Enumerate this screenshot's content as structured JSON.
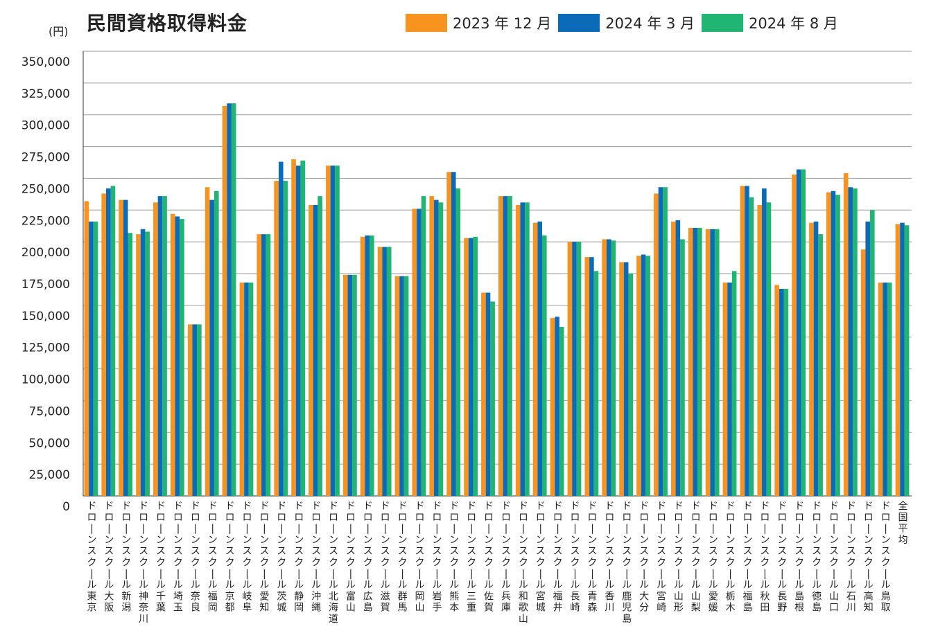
{
  "chart_data": {
    "type": "bar",
    "title": "民間資格取得料金",
    "ylabel": "(円)",
    "xlabel": "",
    "ylim": [
      0,
      350000
    ],
    "yticks": [
      "0",
      "25,000",
      "50,000",
      "75,000",
      "100,000",
      "125,000",
      "150,000",
      "175,000",
      "200,000",
      "225,000",
      "250,000",
      "275,000",
      "300,000",
      "325,000",
      "350,000"
    ],
    "grid": true,
    "legend_position": "top",
    "colors": [
      "#f7931e",
      "#0b6bb8",
      "#21b573"
    ],
    "categories": [
      "ドローンスクール東京",
      "ドローンスクール大阪",
      "ドローンスクール新潟",
      "ドローンスクール神奈川",
      "ドローンスクール千葉",
      "ドローンスクール埼玉",
      "ドローンスクール奈良",
      "ドローンスクール福岡",
      "ドローンスクール京都",
      "ドローンスクール岐阜",
      "ドローンスクール愛知",
      "ドローンスクール茨城",
      "ドローンスクール静岡",
      "ドローンスクール沖縄",
      "ドローンスクール北海道",
      "ドローンスクール富山",
      "ドローンスクール広島",
      "ドローンスクール滋賀",
      "ドローンスクール群馬",
      "ドローンスクール岡山",
      "ドローンスクール岩手",
      "ドローンスクール熊本",
      "ドローンスクール三重",
      "ドローンスクール佐賀",
      "ドローンスクール兵庫",
      "ドローンスクール和歌山",
      "ドローンスクール宮城",
      "ドローンスクール福井",
      "ドローンスクール長崎",
      "ドローンスクール青森",
      "ドローンスクール香川",
      "ドローンスクール鹿児島",
      "ドローンスクール大分",
      "ドローンスクール宮崎",
      "ドローンスクール山形",
      "ドローンスクール山梨",
      "ドローンスクール愛媛",
      "ドローンスクール栃木",
      "ドローンスクール福島",
      "ドローンスクール秋田",
      "ドローンスクール長野",
      "ドローンスクール島根",
      "ドローンスクール徳島",
      "ドローンスクール山口",
      "ドローンスクール石川",
      "ドローンスクール高知",
      "ドローンスクール鳥取",
      "全国平均"
    ],
    "series": [
      {
        "name": "2023 年 12 月",
        "values": [
          232000,
          238000,
          233000,
          206000,
          231000,
          222000,
          135000,
          243000,
          307000,
          168000,
          206000,
          248000,
          265000,
          229000,
          260000,
          174000,
          204000,
          196000,
          173000,
          226000,
          236000,
          255000,
          203000,
          160000,
          236000,
          229000,
          215000,
          140000,
          200000,
          188000,
          202000,
          184000,
          189000,
          238000,
          216000,
          211000,
          210000,
          168000,
          244000,
          229000,
          166000,
          253000,
          215000,
          239000,
          254000,
          194000,
          168000,
          214000
        ]
      },
      {
        "name": "2024 年 3 月",
        "values": [
          216000,
          242000,
          233000,
          210000,
          236000,
          220000,
          135000,
          233000,
          309000,
          168000,
          206000,
          263000,
          260000,
          229000,
          260000,
          174000,
          205000,
          196000,
          173000,
          226000,
          233000,
          255000,
          203000,
          160000,
          236000,
          231000,
          216000,
          141000,
          200000,
          188000,
          202000,
          184000,
          190000,
          243000,
          217000,
          211000,
          210000,
          168000,
          244000,
          242000,
          163000,
          257000,
          216000,
          240000,
          243000,
          216000,
          168000,
          215000
        ]
      },
      {
        "name": "2024 年 8 月",
        "values": [
          216000,
          244000,
          207000,
          208000,
          236000,
          218000,
          135000,
          240000,
          309000,
          168000,
          206000,
          248000,
          264000,
          236000,
          260000,
          174000,
          205000,
          196000,
          173000,
          236000,
          231000,
          242000,
          204000,
          153000,
          236000,
          231000,
          205000,
          133000,
          200000,
          177000,
          201000,
          175000,
          189000,
          243000,
          202000,
          211000,
          210000,
          177000,
          235000,
          231000,
          163000,
          257000,
          206000,
          237000,
          242000,
          225000,
          168000,
          213000
        ]
      }
    ]
  }
}
